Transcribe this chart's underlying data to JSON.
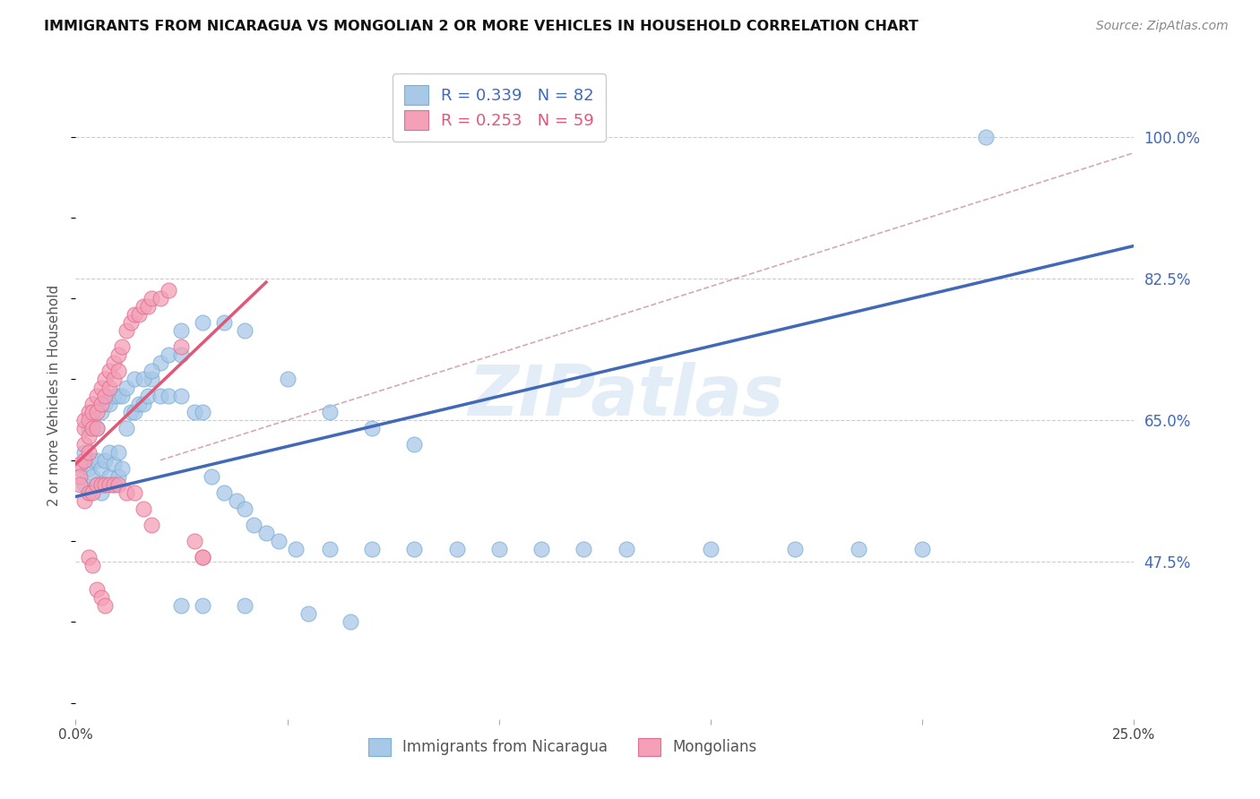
{
  "title": "IMMIGRANTS FROM NICARAGUA VS MONGOLIAN 2 OR MORE VEHICLES IN HOUSEHOLD CORRELATION CHART",
  "source": "Source: ZipAtlas.com",
  "ylabel_label": "2 or more Vehicles in Household",
  "legend_label1": "Immigrants from Nicaragua",
  "legend_label2": "Mongolians",
  "blue_color": "#a8c8e8",
  "pink_color": "#f4a0b8",
  "blue_edge_color": "#7bafd4",
  "pink_edge_color": "#e07090",
  "watermark": "ZIPatlas",
  "blue_line_color": "#4169b8",
  "pink_line_color": "#e05878",
  "diag_line_color": "#d0a0b0",
  "x_min": 0.0,
  "x_max": 0.25,
  "y_min": 0.28,
  "y_max": 1.08,
  "ytick_vals": [
    0.475,
    0.65,
    0.825,
    1.0
  ],
  "ytick_labels": [
    "47.5%",
    "65.0%",
    "82.5%",
    "100.0%"
  ],
  "xtick_vals": [
    0.0,
    0.05,
    0.1,
    0.15,
    0.2,
    0.25
  ],
  "xtick_labels": [
    "0.0%",
    "",
    "",
    "",
    "",
    "25.0%"
  ],
  "blue_line_x": [
    0.0,
    0.25
  ],
  "blue_line_y": [
    0.555,
    0.865
  ],
  "pink_line_x": [
    0.0,
    0.045
  ],
  "pink_line_y": [
    0.595,
    0.82
  ],
  "diag_line_x": [
    0.02,
    0.25
  ],
  "diag_line_y": [
    0.6,
    0.98
  ],
  "blue_scatter_x": [
    0.001,
    0.002,
    0.002,
    0.003,
    0.003,
    0.004,
    0.004,
    0.005,
    0.005,
    0.006,
    0.006,
    0.007,
    0.007,
    0.008,
    0.008,
    0.009,
    0.009,
    0.01,
    0.01,
    0.011,
    0.012,
    0.013,
    0.014,
    0.015,
    0.016,
    0.017,
    0.018,
    0.02,
    0.022,
    0.025,
    0.003,
    0.004,
    0.005,
    0.006,
    0.007,
    0.008,
    0.009,
    0.01,
    0.011,
    0.012,
    0.014,
    0.016,
    0.018,
    0.02,
    0.022,
    0.025,
    0.028,
    0.03,
    0.032,
    0.035,
    0.038,
    0.04,
    0.042,
    0.045,
    0.048,
    0.052,
    0.06,
    0.07,
    0.08,
    0.09,
    0.1,
    0.11,
    0.12,
    0.13,
    0.15,
    0.17,
    0.185,
    0.2,
    0.025,
    0.03,
    0.035,
    0.04,
    0.05,
    0.06,
    0.07,
    0.08,
    0.025,
    0.03,
    0.04,
    0.055,
    0.065,
    0.215
  ],
  "blue_scatter_y": [
    0.59,
    0.57,
    0.61,
    0.56,
    0.59,
    0.58,
    0.6,
    0.57,
    0.6,
    0.56,
    0.59,
    0.57,
    0.6,
    0.58,
    0.61,
    0.57,
    0.595,
    0.58,
    0.61,
    0.59,
    0.64,
    0.66,
    0.66,
    0.67,
    0.67,
    0.68,
    0.7,
    0.72,
    0.73,
    0.73,
    0.64,
    0.65,
    0.64,
    0.66,
    0.67,
    0.67,
    0.68,
    0.68,
    0.68,
    0.69,
    0.7,
    0.7,
    0.71,
    0.68,
    0.68,
    0.68,
    0.66,
    0.66,
    0.58,
    0.56,
    0.55,
    0.54,
    0.52,
    0.51,
    0.5,
    0.49,
    0.49,
    0.49,
    0.49,
    0.49,
    0.49,
    0.49,
    0.49,
    0.49,
    0.49,
    0.49,
    0.49,
    0.49,
    0.76,
    0.77,
    0.77,
    0.76,
    0.7,
    0.66,
    0.64,
    0.62,
    0.42,
    0.42,
    0.42,
    0.41,
    0.4,
    1.0
  ],
  "pink_scatter_x": [
    0.001,
    0.001,
    0.001,
    0.002,
    0.002,
    0.002,
    0.002,
    0.003,
    0.003,
    0.003,
    0.003,
    0.004,
    0.004,
    0.004,
    0.005,
    0.005,
    0.005,
    0.006,
    0.006,
    0.007,
    0.007,
    0.008,
    0.008,
    0.009,
    0.009,
    0.01,
    0.01,
    0.011,
    0.012,
    0.013,
    0.014,
    0.015,
    0.016,
    0.017,
    0.018,
    0.02,
    0.022,
    0.025,
    0.028,
    0.03,
    0.002,
    0.003,
    0.004,
    0.005,
    0.006,
    0.007,
    0.008,
    0.009,
    0.01,
    0.012,
    0.014,
    0.016,
    0.018,
    0.003,
    0.004,
    0.005,
    0.006,
    0.007,
    0.03
  ],
  "pink_scatter_y": [
    0.595,
    0.58,
    0.57,
    0.64,
    0.65,
    0.62,
    0.6,
    0.66,
    0.65,
    0.63,
    0.61,
    0.67,
    0.66,
    0.64,
    0.68,
    0.66,
    0.64,
    0.69,
    0.67,
    0.7,
    0.68,
    0.71,
    0.69,
    0.72,
    0.7,
    0.73,
    0.71,
    0.74,
    0.76,
    0.77,
    0.78,
    0.78,
    0.79,
    0.79,
    0.8,
    0.8,
    0.81,
    0.74,
    0.5,
    0.48,
    0.55,
    0.56,
    0.56,
    0.57,
    0.57,
    0.57,
    0.57,
    0.57,
    0.57,
    0.56,
    0.56,
    0.54,
    0.52,
    0.48,
    0.47,
    0.44,
    0.43,
    0.42,
    0.48
  ]
}
